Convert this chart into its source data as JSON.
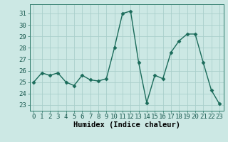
{
  "x": [
    0,
    1,
    2,
    3,
    4,
    5,
    6,
    7,
    8,
    9,
    10,
    11,
    12,
    13,
    14,
    15,
    16,
    17,
    18,
    19,
    20,
    21,
    22,
    23
  ],
  "y": [
    25.0,
    25.8,
    25.6,
    25.8,
    25.0,
    24.7,
    25.6,
    25.2,
    25.1,
    25.3,
    28.0,
    31.0,
    31.2,
    26.7,
    23.2,
    25.6,
    25.3,
    27.6,
    28.6,
    29.2,
    29.2,
    26.7,
    24.3,
    23.1
  ],
  "line_color": "#1a6b5a",
  "marker": "D",
  "markersize": 2.5,
  "linewidth": 1.0,
  "bg_color": "#cce8e4",
  "grid_color": "#aacfcb",
  "xlabel": "Humidex (Indice chaleur)",
  "tick_fontsize": 6.5,
  "xlabel_fontsize": 7.5,
  "ylim": [
    22.5,
    31.8
  ],
  "yticks": [
    23,
    24,
    25,
    26,
    27,
    28,
    29,
    30,
    31
  ],
  "xticks": [
    0,
    1,
    2,
    3,
    4,
    5,
    6,
    7,
    8,
    9,
    10,
    11,
    12,
    13,
    14,
    15,
    16,
    17,
    18,
    19,
    20,
    21,
    22,
    23
  ]
}
